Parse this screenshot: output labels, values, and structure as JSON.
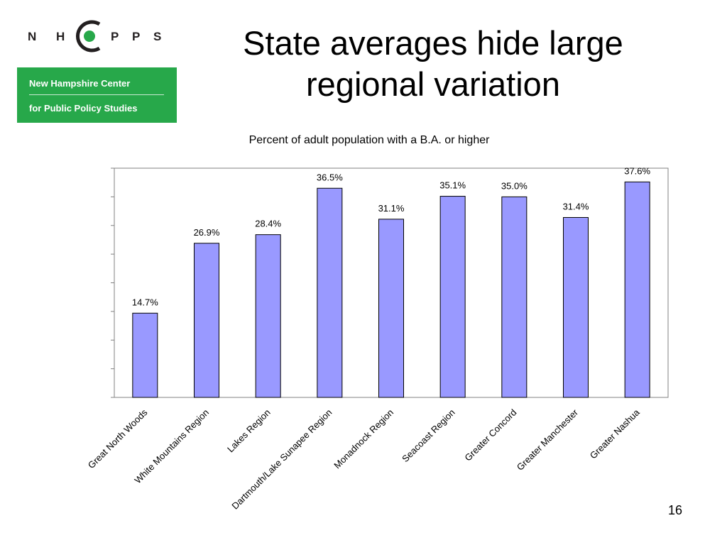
{
  "logo": {
    "letters": [
      "N",
      "H",
      "P",
      "P",
      "S"
    ],
    "line1": "New Hampshire Center",
    "line2": "for Public Policy Studies",
    "green": "#27a84a"
  },
  "slide": {
    "title": "State averages hide large regional variation",
    "page_number": "16"
  },
  "chart_data": {
    "type": "bar",
    "title": "Percent of adult population with a B.A. or higher",
    "categories": [
      "Great North Woods",
      "White Mountains Region",
      "Lakes Region",
      "Dartmouth/Lake Sunapee Region",
      "Monadnock Region",
      "Seacoast Region",
      "Greater Concord",
      "Greater Manchester",
      "Greater Nashua"
    ],
    "values": [
      14.7,
      26.9,
      28.4,
      36.5,
      31.1,
      35.1,
      35.0,
      31.4,
      37.6
    ],
    "data_labels": [
      "14.7%",
      "26.9%",
      "28.4%",
      "36.5%",
      "31.1%",
      "35.1%",
      "35.0%",
      "31.4%",
      "37.6%"
    ],
    "ylim": [
      0,
      40
    ],
    "grid": false,
    "legend": "none",
    "bar_color": "#9999ff"
  }
}
